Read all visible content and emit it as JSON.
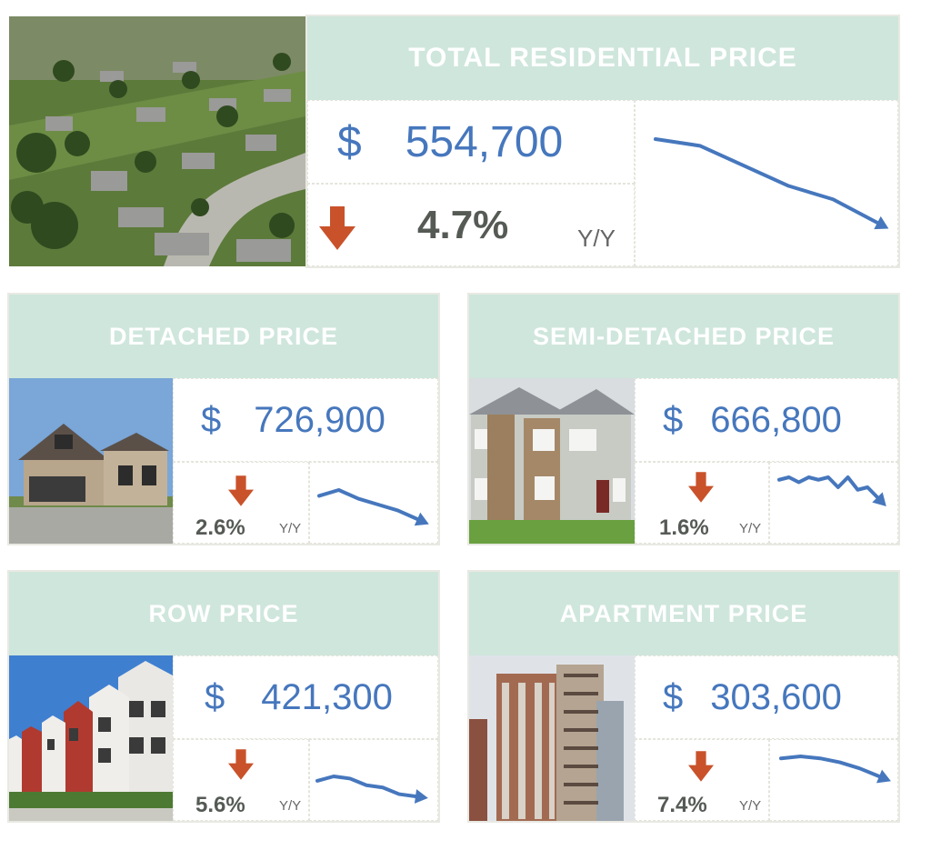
{
  "colors": {
    "header_bg": "#cfe6dc",
    "header_text": "#ffffff",
    "price_text": "#4677bd",
    "down_arrow": "#c9522a",
    "trend_line": "#4677bd",
    "pct_text": "#555a55"
  },
  "total": {
    "title": "TOTAL RESIDENTIAL PRICE",
    "currency": "$",
    "price": "554,700",
    "change_direction": "down",
    "change_pct": "4.7%",
    "period": "Y/Y",
    "photo_icon": "aerial-neighbourhood-photo",
    "trend": [
      100,
      98,
      92,
      86,
      82,
      75
    ]
  },
  "cards": [
    {
      "key": "detached",
      "title": "DETACHED PRICE",
      "currency": "$",
      "price": "726,900",
      "change_direction": "down",
      "change_pct": "2.6%",
      "period": "Y/Y",
      "photo_icon": "detached-house-photo",
      "trend": [
        100,
        102,
        99,
        97,
        95,
        92
      ]
    },
    {
      "key": "semi",
      "title": "SEMI-DETACHED PRICE",
      "currency": "$",
      "price": "666,800",
      "change_direction": "down",
      "change_pct": "1.6%",
      "period": "Y/Y",
      "photo_icon": "semi-detached-house-photo",
      "trend": [
        100,
        101,
        99,
        101,
        100,
        101,
        97,
        101,
        96,
        97,
        93
      ]
    },
    {
      "key": "row",
      "title": "ROW PRICE",
      "currency": "$",
      "price": "421,300",
      "change_direction": "down",
      "change_pct": "5.6%",
      "period": "Y/Y",
      "photo_icon": "row-townhouse-photo",
      "trend": [
        100,
        102,
        101,
        98,
        97,
        94,
        93
      ]
    },
    {
      "key": "apartment",
      "title": "APARTMENT PRICE",
      "currency": "$",
      "price": "303,600",
      "change_direction": "down",
      "change_pct": "7.4%",
      "period": "Y/Y",
      "photo_icon": "apartment-tower-photo",
      "trend": [
        100,
        101,
        100,
        98,
        95,
        91
      ]
    }
  ]
}
